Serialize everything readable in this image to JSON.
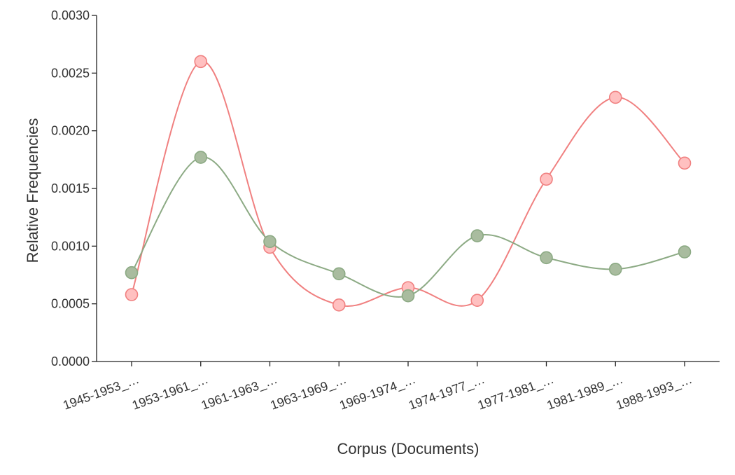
{
  "chart_data": {
    "type": "line",
    "title": "",
    "xlabel": "Corpus (Documents)",
    "ylabel": "Relative Frequencies",
    "categories": [
      "1945-1953_…",
      "1953-1961_…",
      "1961-1963_…",
      "1963-1969_…",
      "1969-1974_…",
      "1974-1977_…",
      "1977-1981_…",
      "1981-1989_…",
      "1988-1993_…"
    ],
    "y_ticks": [
      "0.0000",
      "0.0005",
      "0.0010",
      "0.0015",
      "0.0020",
      "0.0025",
      "0.0030"
    ],
    "ylim": [
      0,
      0.003
    ],
    "grid": false,
    "legend": "none",
    "series": [
      {
        "color": "#f08080",
        "marker_fill": "#ffc0c0",
        "values": [
          0.00058,
          0.0026,
          0.00099,
          0.00049,
          0.00064,
          0.00053,
          0.00158,
          0.00229,
          0.00172
        ]
      },
      {
        "color": "#8caa84",
        "marker_fill": "#a9bc9f",
        "values": [
          0.00077,
          0.00177,
          0.00104,
          0.00076,
          0.00057,
          0.00109,
          0.0009,
          0.0008,
          0.00095
        ]
      }
    ]
  }
}
